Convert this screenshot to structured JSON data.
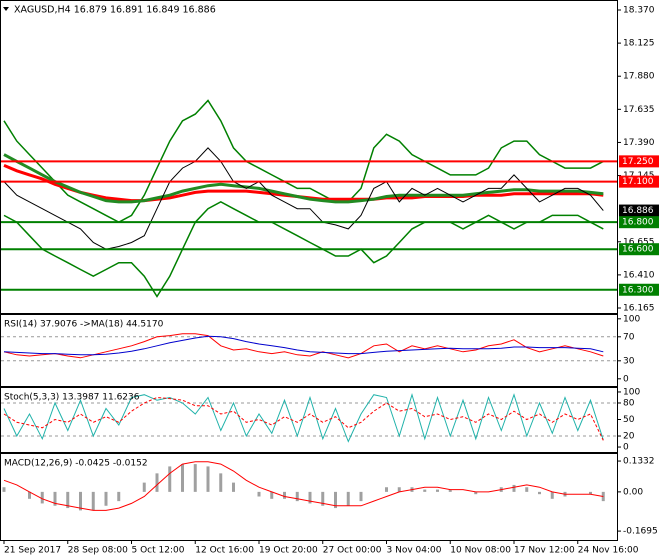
{
  "chart_data": [
    {
      "type": "line",
      "title": "XAGUSD,H4  16.879 16.891 16.849 16.886",
      "categories": [
        "21 Sep 2017",
        null,
        null,
        null,
        null,
        "28 Sep 08:00",
        null,
        null,
        null,
        null,
        "5 Oct 12:00",
        null,
        null,
        null,
        null,
        "12 Oct 16:00",
        null,
        null,
        null,
        null,
        "19 Oct 20:00",
        null,
        null,
        null,
        null,
        "27 Oct 00:00",
        null,
        null,
        null,
        null,
        "3 Nov 04:00",
        null,
        null,
        null,
        null,
        "10 Nov 08:00",
        null,
        null,
        null,
        null,
        "17 Nov 12:00",
        null,
        null,
        null,
        null,
        "24 Nov 16:00",
        null,
        null
      ],
      "ylim": [
        16.128,
        18.444
      ],
      "yticks": [
        {
          "value": 18.37,
          "label": "18.370"
        },
        {
          "value": 18.125,
          "label": "18.125"
        },
        {
          "value": 17.88,
          "label": "17.880"
        },
        {
          "value": 17.635,
          "label": "17.635"
        },
        {
          "value": 17.39,
          "label": "17.390"
        },
        {
          "value": 17.145,
          "label": "17.145"
        },
        {
          "value": 16.655,
          "label": "16.655"
        },
        {
          "value": 16.41,
          "label": "16.410"
        },
        {
          "value": 16.165,
          "label": "16.165"
        }
      ],
      "series": [
        {
          "color": "#008000",
          "values": [
            17.55,
            17.4,
            17.3,
            17.2,
            17.1,
            17.0,
            16.95,
            16.9,
            16.85,
            16.8,
            16.85,
            17.0,
            17.2,
            17.4,
            17.55,
            17.6,
            17.7,
            17.55,
            17.35,
            17.25,
            17.2,
            17.15,
            17.1,
            17.05,
            17.05,
            17.0,
            16.95,
            16.95,
            17.05,
            17.35,
            17.45,
            17.4,
            17.3,
            17.25,
            17.2,
            17.15,
            17.15,
            17.15,
            17.2,
            17.35,
            17.4,
            17.4,
            17.3,
            17.25,
            17.2,
            17.2,
            17.2,
            17.25
          ]
        },
        {
          "color": "#008000",
          "values": [
            16.85,
            16.8,
            16.7,
            16.6,
            16.55,
            16.5,
            16.45,
            16.4,
            16.45,
            16.5,
            16.5,
            16.4,
            16.25,
            16.4,
            16.6,
            16.8,
            16.9,
            16.95,
            16.9,
            16.85,
            16.8,
            16.8,
            16.75,
            16.7,
            16.65,
            16.6,
            16.55,
            16.55,
            16.6,
            16.5,
            16.55,
            16.65,
            16.75,
            16.8,
            16.8,
            16.8,
            16.75,
            16.8,
            16.85,
            16.8,
            16.75,
            16.8,
            16.8,
            16.85,
            16.85,
            16.85,
            16.8,
            16.75
          ]
        },
        {
          "color": "#ff0000",
          "values": [
            17.22,
            17.18,
            17.15,
            17.12,
            17.08,
            17.05,
            17.02,
            17.0,
            16.98,
            16.97,
            16.96,
            16.96,
            16.97,
            16.98,
            17.0,
            17.02,
            17.03,
            17.03,
            17.03,
            17.03,
            17.02,
            17.01,
            17.0,
            16.99,
            16.98,
            16.97,
            16.97,
            16.97,
            16.97,
            16.97,
            16.98,
            16.98,
            16.98,
            16.99,
            16.99,
            16.99,
            16.99,
            17.0,
            17.0,
            17.0,
            17.01,
            17.01,
            17.01,
            17.01,
            17.01,
            17.01,
            17.01,
            17.0
          ]
        },
        {
          "color": "#228b22",
          "values": [
            17.3,
            17.25,
            17.2,
            17.15,
            17.1,
            17.06,
            17.02,
            16.99,
            16.96,
            16.95,
            16.95,
            16.96,
            16.98,
            17.0,
            17.03,
            17.05,
            17.07,
            17.08,
            17.07,
            17.06,
            17.05,
            17.03,
            17.01,
            16.99,
            16.97,
            16.96,
            16.95,
            16.95,
            16.96,
            16.97,
            16.99,
            17.0,
            17.0,
            17.0,
            17.0,
            17.0,
            17.0,
            17.01,
            17.02,
            17.03,
            17.04,
            17.04,
            17.03,
            17.03,
            17.03,
            17.03,
            17.02,
            17.01
          ]
        },
        {
          "color": "#000000",
          "values": [
            17.1,
            17.0,
            16.95,
            16.9,
            16.85,
            16.8,
            16.75,
            16.65,
            16.6,
            16.62,
            16.65,
            16.7,
            16.9,
            17.1,
            17.2,
            17.25,
            17.35,
            17.25,
            17.1,
            17.05,
            17.1,
            17.0,
            16.95,
            16.9,
            16.9,
            16.8,
            16.78,
            16.75,
            16.85,
            17.05,
            17.1,
            16.95,
            17.05,
            17.0,
            17.05,
            17.0,
            16.95,
            17.0,
            17.05,
            17.05,
            17.15,
            17.05,
            16.95,
            17.0,
            17.05,
            17.05,
            17.0,
            16.886
          ]
        }
      ],
      "levels": [
        {
          "value": 17.25,
          "label": "17.250",
          "color": "#ff0000"
        },
        {
          "value": 17.1,
          "label": "17.100",
          "color": "#ff0000"
        },
        {
          "value": 16.886,
          "label": "16.886",
          "color": "#000000"
        },
        {
          "value": 16.8,
          "label": "16.800",
          "color": "#008000"
        },
        {
          "value": 16.6,
          "label": "16.600",
          "color": "#008000"
        },
        {
          "value": 16.3,
          "label": "16.300",
          "color": "#008000"
        }
      ]
    },
    {
      "type": "line",
      "title": "RSI(14) 37.9076 ->MA(18) 44.5170",
      "ylim": [
        -12,
        108
      ],
      "yticks": [
        100,
        70,
        30,
        0
      ],
      "dashed_levels": [
        70,
        30
      ],
      "series": [
        {
          "color": "#ff0000",
          "values": [
            45,
            40,
            38,
            40,
            42,
            38,
            35,
            40,
            45,
            50,
            55,
            62,
            70,
            72,
            75,
            75,
            72,
            55,
            48,
            50,
            45,
            42,
            45,
            40,
            38,
            45,
            40,
            35,
            42,
            55,
            58,
            45,
            55,
            50,
            55,
            50,
            45,
            48,
            55,
            58,
            65,
            52,
            45,
            50,
            55,
            50,
            45,
            38
          ]
        },
        {
          "color": "#0000cd",
          "values": [
            45,
            44,
            43,
            42,
            42,
            41,
            40,
            40,
            41,
            43,
            46,
            50,
            55,
            60,
            64,
            68,
            71,
            70,
            67,
            62,
            58,
            55,
            52,
            48,
            45,
            44,
            43,
            42,
            42,
            44,
            46,
            47,
            48,
            49,
            50,
            51,
            50,
            50,
            50,
            51,
            53,
            53,
            52,
            52,
            52,
            51,
            50,
            45
          ]
        }
      ]
    },
    {
      "type": "line",
      "title": "Stoch(5,3,3) 13.3987 11.6236",
      "ylim": [
        -9,
        109
      ],
      "yticks": [
        100,
        80,
        50,
        20,
        0
      ],
      "dashed_levels": [
        80,
        20
      ],
      "series": [
        {
          "color": "#20b2aa",
          "values": [
            70,
            20,
            60,
            15,
            80,
            30,
            85,
            20,
            70,
            40,
            90,
            95,
            85,
            90,
            80,
            60,
            90,
            30,
            80,
            20,
            60,
            25,
            85,
            20,
            90,
            15,
            70,
            10,
            60,
            95,
            90,
            20,
            95,
            15,
            90,
            20,
            85,
            15,
            90,
            30,
            95,
            20,
            80,
            25,
            90,
            30,
            85,
            13
          ]
        },
        {
          "color": "#ff0000",
          "dashed": true,
          "values": [
            60,
            45,
            40,
            35,
            50,
            45,
            60,
            45,
            55,
            45,
            65,
            80,
            90,
            88,
            85,
            75,
            75,
            60,
            65,
            45,
            50,
            40,
            55,
            45,
            60,
            45,
            55,
            35,
            45,
            65,
            80,
            65,
            70,
            55,
            60,
            50,
            55,
            45,
            60,
            50,
            65,
            50,
            60,
            45,
            60,
            50,
            60,
            12
          ]
        }
      ]
    },
    {
      "type": "macd",
      "title": "MACD(12,26,9) -0.0425 -0.0152",
      "ylim": [
        -0.208,
        0.168
      ],
      "yticks": [
        0.1332,
        {
          "value": 0,
          "label": "0.00"
        },
        -0.1695
      ],
      "series": [
        {
          "type": "bar",
          "color": "#a0a0a0",
          "values": [
            0.02,
            0,
            -0.03,
            -0.05,
            -0.06,
            -0.07,
            -0.08,
            -0.08,
            -0.06,
            -0.04,
            0,
            0.04,
            0.08,
            0.11,
            0.12,
            0.12,
            0.11,
            0.08,
            0.04,
            0,
            -0.02,
            -0.03,
            -0.03,
            -0.04,
            -0.05,
            -0.06,
            -0.07,
            -0.06,
            -0.04,
            0,
            0.02,
            0.02,
            0.02,
            0.01,
            0.01,
            0.01,
            0,
            -0.01,
            0,
            0.02,
            0.03,
            0.02,
            -0.01,
            -0.03,
            -0.02,
            0,
            -0.01,
            -0.04
          ]
        },
        {
          "type": "line",
          "color": "#ff0000",
          "values": [
            0.05,
            0.03,
            0,
            -0.03,
            -0.05,
            -0.06,
            -0.07,
            -0.08,
            -0.08,
            -0.07,
            -0.05,
            -0.02,
            0.03,
            0.08,
            0.12,
            0.13,
            0.13,
            0.12,
            0.09,
            0.05,
            0.02,
            0,
            -0.02,
            -0.03,
            -0.04,
            -0.05,
            -0.06,
            -0.06,
            -0.06,
            -0.04,
            -0.02,
            0,
            0.01,
            0.02,
            0.02,
            0.01,
            0.01,
            0,
            0,
            0.01,
            0.02,
            0.03,
            0.02,
            0,
            -0.01,
            -0.01,
            -0.01,
            -0.02
          ]
        }
      ]
    }
  ]
}
